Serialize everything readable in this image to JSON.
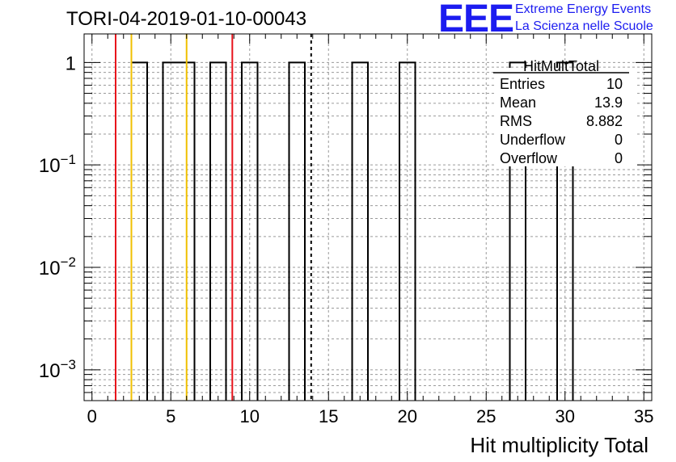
{
  "header": {
    "title": "TORI-04-2019-01-10-00043"
  },
  "logo": {
    "mark": "EEE",
    "line1": "Extreme Energy Events",
    "line2": "La Scienza nelle Scuole",
    "color": "#1c1cf0"
  },
  "stats": {
    "name": "HitMultTotal",
    "rows": [
      {
        "label": "Entries",
        "value": "10"
      },
      {
        "label": "Mean",
        "value": "13.9"
      },
      {
        "label": "RMS",
        "value": "8.882"
      },
      {
        "label": "Underflow",
        "value": "0"
      },
      {
        "label": "Overflow",
        "value": "0"
      }
    ]
  },
  "chart_data": {
    "type": "bar",
    "xlabel": "Hit multiplicity Total",
    "ylabel": "",
    "xlim": [
      -0.5,
      35.5
    ],
    "ylim": [
      0.0005,
      1.9
    ],
    "log_y": true,
    "grid": true,
    "x_ticks": [
      0,
      5,
      10,
      15,
      20,
      25,
      30,
      35
    ],
    "y_ticks": [
      {
        "value": 1,
        "label": "1"
      },
      {
        "value": 0.1,
        "label": "10^-1",
        "base": "10",
        "exp": "−1"
      },
      {
        "value": 0.01,
        "label": "10^-2",
        "base": "10",
        "exp": "−2"
      },
      {
        "value": 0.001,
        "label": "10^-3",
        "base": "10",
        "exp": "−3"
      }
    ],
    "bins": [
      {
        "low": 2.5,
        "high": 3.5,
        "value": 1
      },
      {
        "low": 4.5,
        "high": 6.5,
        "value": 1
      },
      {
        "low": 7.5,
        "high": 8.5,
        "value": 1
      },
      {
        "low": 9.5,
        "high": 10.5,
        "value": 1
      },
      {
        "low": 12.5,
        "high": 13.5,
        "value": 1
      },
      {
        "low": 16.5,
        "high": 17.5,
        "value": 1
      },
      {
        "low": 19.5,
        "high": 20.5,
        "value": 1
      },
      {
        "low": 26.5,
        "high": 27.5,
        "value": 1
      },
      {
        "low": 29.5,
        "high": 30.5,
        "value": 1
      }
    ],
    "reference_lines": [
      {
        "x": 1.5,
        "color": "#e8141c",
        "style": "solid"
      },
      {
        "x": 2.5,
        "color": "#f0c000",
        "style": "solid"
      },
      {
        "x": 6.0,
        "color": "#f0c000",
        "style": "solid"
      },
      {
        "x": 8.9,
        "color": "#e8141c",
        "style": "solid"
      },
      {
        "x": 13.9,
        "color": "#000000",
        "style": "dashed"
      }
    ]
  }
}
